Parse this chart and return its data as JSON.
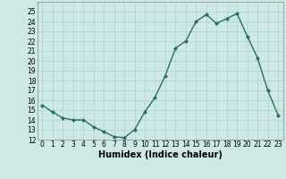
{
  "x": [
    0,
    1,
    2,
    3,
    4,
    5,
    6,
    7,
    8,
    9,
    10,
    11,
    12,
    13,
    14,
    15,
    16,
    17,
    18,
    19,
    20,
    21,
    22,
    23
  ],
  "y": [
    15.5,
    14.8,
    14.2,
    14.0,
    14.0,
    13.3,
    12.8,
    12.3,
    12.2,
    13.0,
    14.8,
    16.3,
    18.5,
    21.3,
    22.0,
    24.0,
    24.7,
    23.8,
    24.3,
    24.8,
    22.5,
    20.3,
    17.0,
    14.5
  ],
  "xlabel": "Humidex (Indice chaleur)",
  "ylim": [
    12,
    26
  ],
  "xlim": [
    -0.5,
    23.5
  ],
  "yticks": [
    12,
    13,
    14,
    15,
    16,
    17,
    18,
    19,
    20,
    21,
    22,
    23,
    24,
    25
  ],
  "xticks": [
    0,
    1,
    2,
    3,
    4,
    5,
    6,
    7,
    8,
    9,
    10,
    11,
    12,
    13,
    14,
    15,
    16,
    17,
    18,
    19,
    20,
    21,
    22,
    23
  ],
  "xtick_labels": [
    "0",
    "1",
    "2",
    "3",
    "4",
    "5",
    "6",
    "7",
    "8",
    "9",
    "10",
    "11",
    "12",
    "13",
    "14",
    "15",
    "16",
    "17",
    "18",
    "19",
    "20",
    "21",
    "22",
    "23"
  ],
  "line_color": "#2a6e64",
  "marker_color": "#2a6e64",
  "bg_color": "#cde8e5",
  "grid_color": "#b0d5d2",
  "xlabel_fontsize": 7,
  "tick_fontsize": 5.5
}
